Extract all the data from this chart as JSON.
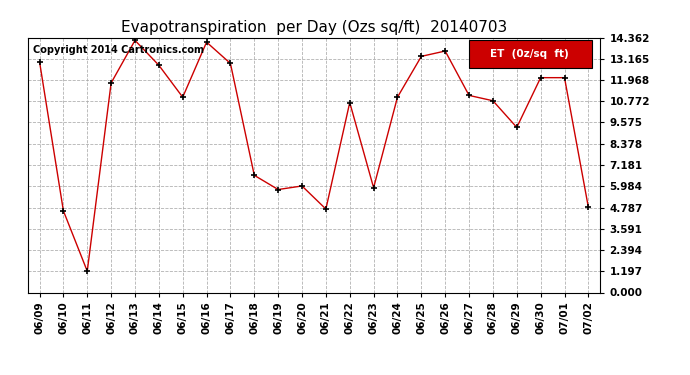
{
  "title": "Evapotranspiration  per Day (Ozs sq/ft)  20140703",
  "copyright_text": "Copyright 2014 Cartronics.com",
  "legend_label": "ET  (0z/sq  ft)",
  "dates": [
    "06/09",
    "06/10",
    "06/11",
    "06/12",
    "06/13",
    "06/14",
    "06/15",
    "06/16",
    "06/17",
    "06/18",
    "06/19",
    "06/20",
    "06/21",
    "06/22",
    "06/23",
    "06/24",
    "06/25",
    "06/26",
    "06/27",
    "06/28",
    "06/29",
    "06/30",
    "07/01",
    "07/02"
  ],
  "values": [
    13.0,
    4.6,
    1.2,
    11.8,
    14.2,
    12.8,
    11.0,
    14.1,
    12.9,
    6.6,
    5.8,
    6.0,
    4.7,
    10.7,
    5.9,
    11.0,
    13.3,
    13.6,
    11.1,
    10.8,
    9.3,
    12.1,
    12.1,
    4.8
  ],
  "ylim": [
    0.0,
    14.362
  ],
  "yticks": [
    0.0,
    1.197,
    2.394,
    3.591,
    4.787,
    5.984,
    7.181,
    8.378,
    9.575,
    10.772,
    11.968,
    13.165,
    14.362
  ],
  "line_color": "#cc0000",
  "marker_color": "#000000",
  "bg_color": "#ffffff",
  "grid_color": "#aaaaaa",
  "title_fontsize": 11,
  "tick_fontsize": 7.5,
  "copyright_fontsize": 7,
  "legend_bg": "#cc0000",
  "legend_text_color": "#ffffff",
  "legend_fontsize": 7.5
}
